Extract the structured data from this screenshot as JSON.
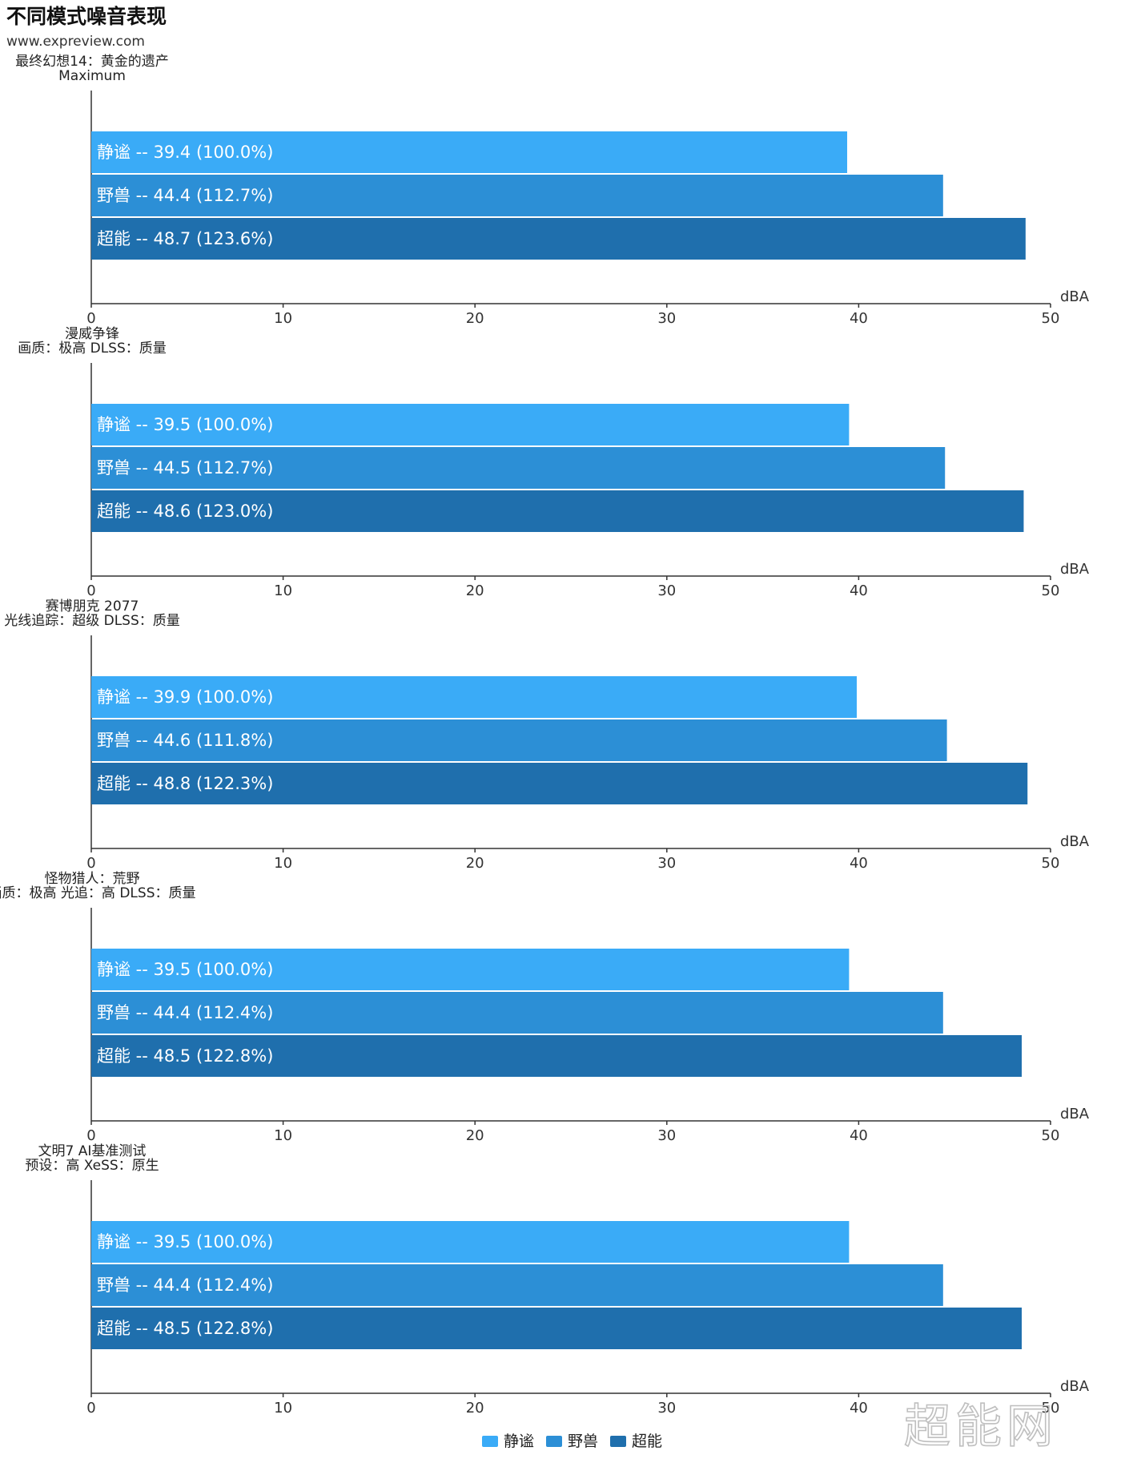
{
  "title": "不同模式噪音表现",
  "site": "www.expreview.com",
  "watermark": "超能网",
  "colors": {
    "静谧": "#3aabf7",
    "野兽": "#2c8fd6",
    "超能": "#1f6fad"
  },
  "chart_data": [
    {
      "type": "bar",
      "orientation": "horizontal",
      "title_lines": [
        "最终幻想14：黄金的遗产",
        "Maximum"
      ],
      "categories": [
        "静谧",
        "野兽",
        "超能"
      ],
      "values": [
        39.4,
        44.4,
        48.7
      ],
      "labels": [
        "静谧 -- 39.4 (100.0%)",
        "野兽 -- 44.4 (112.7%)",
        "超能 -- 48.7 (123.6%)"
      ],
      "xlim": [
        0,
        50
      ],
      "xticks": [
        "0",
        "10",
        "20",
        "30",
        "40",
        "50"
      ],
      "xlabel": "dBA"
    },
    {
      "type": "bar",
      "orientation": "horizontal",
      "title_lines": [
        "漫威争锋",
        "画质：极高 DLSS：质量"
      ],
      "categories": [
        "静谧",
        "野兽",
        "超能"
      ],
      "values": [
        39.5,
        44.5,
        48.6
      ],
      "labels": [
        "静谧 -- 39.5 (100.0%)",
        "野兽 -- 44.5 (112.7%)",
        "超能 -- 48.6 (123.0%)"
      ],
      "xlim": [
        0,
        50
      ],
      "xticks": [
        "0",
        "10",
        "20",
        "30",
        "40",
        "50"
      ],
      "xlabel": "dBA"
    },
    {
      "type": "bar",
      "orientation": "horizontal",
      "title_lines": [
        "赛博朋克 2077",
        "光线追踪：超级 DLSS：质量"
      ],
      "categories": [
        "静谧",
        "野兽",
        "超能"
      ],
      "values": [
        39.9,
        44.6,
        48.8
      ],
      "labels": [
        "静谧 -- 39.9 (100.0%)",
        "野兽 -- 44.6 (111.8%)",
        "超能 -- 48.8 (122.3%)"
      ],
      "xlim": [
        0,
        50
      ],
      "xticks": [
        "0",
        "10",
        "20",
        "30",
        "40",
        "50"
      ],
      "xlabel": "dBA"
    },
    {
      "type": "bar",
      "orientation": "horizontal",
      "title_lines": [
        "怪物猎人：荒野",
        "画质：极高 光追：高 DLSS：质量"
      ],
      "categories": [
        "静谧",
        "野兽",
        "超能"
      ],
      "values": [
        39.5,
        44.4,
        48.5
      ],
      "labels": [
        "静谧 -- 39.5 (100.0%)",
        "野兽 -- 44.4 (112.4%)",
        "超能 -- 48.5 (122.8%)"
      ],
      "xlim": [
        0,
        50
      ],
      "xticks": [
        "0",
        "10",
        "20",
        "30",
        "40",
        "50"
      ],
      "xlabel": "dBA"
    },
    {
      "type": "bar",
      "orientation": "horizontal",
      "title_lines": [
        "文明7 AI基准测试",
        "预设：高 XeSS：原生"
      ],
      "categories": [
        "静谧",
        "野兽",
        "超能"
      ],
      "values": [
        39.5,
        44.4,
        48.5
      ],
      "labels": [
        "静谧 -- 39.5 (100.0%)",
        "野兽 -- 44.4 (112.4%)",
        "超能 -- 48.5 (122.8%)"
      ],
      "xlim": [
        0,
        50
      ],
      "xticks": [
        "0",
        "10",
        "20",
        "30",
        "40",
        "50"
      ],
      "xlabel": "dBA"
    }
  ],
  "legend": [
    {
      "name": "静谧",
      "color": "#3aabf7"
    },
    {
      "name": "野兽",
      "color": "#2c8fd6"
    },
    {
      "name": "超能",
      "color": "#1f6fad"
    }
  ]
}
